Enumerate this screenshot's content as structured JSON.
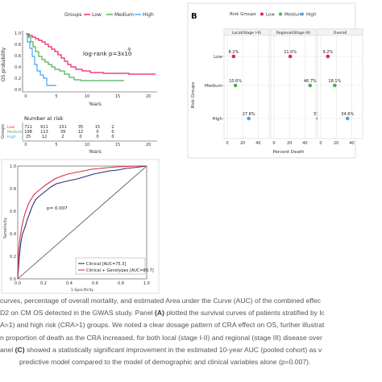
{
  "colors": {
    "low": "#e91e63",
    "medium": "#4caf50",
    "high": "#42a5f5",
    "ink": "#333333",
    "grid": "#d8d8d8",
    "clinical": "#2e2e7a",
    "genotypes": "#d83040"
  },
  "panelA": {
    "legend_title": "Groups",
    "legend": [
      "Low",
      "Medium",
      "High"
    ],
    "ylabel": "OS probability",
    "xlabel": "Years",
    "pvalue": "log-rank p=3x10",
    "pvalue_exp": "-9",
    "y_ticks": [
      "1.0",
      "0.8",
      "0.6",
      "0.4",
      "0.2",
      "0.0"
    ],
    "x_ticks": [
      "0",
      "5",
      "10",
      "15",
      "20"
    ],
    "risk_title": "Number at risk",
    "risk_ylabel": "Groups",
    "risk_xlabel": "Years",
    "risk_groups": [
      "Low",
      "Medium",
      "High"
    ],
    "risk_table": [
      [
        "711",
        "611",
        "151",
        "35",
        "15",
        "2"
      ],
      [
        "198",
        "113",
        "39",
        "12",
        "0",
        "0"
      ],
      [
        "25",
        "12",
        "2",
        "0",
        "0",
        "0"
      ]
    ],
    "risk_x_ticks": [
      "0",
      "5",
      "10",
      "15",
      "20"
    ]
  },
  "panelB": {
    "label": "B",
    "legend_title": "Risk Groups",
    "legend": [
      "Low",
      "Medium",
      "High"
    ],
    "facets": [
      "Local(Stage I-II)",
      "Regional(Stage III)",
      "Overall"
    ],
    "ylabel": "Risk Groups",
    "row_labels": [
      "Low",
      "Medium",
      "High"
    ],
    "xlabel": "Percent Death",
    "x_ticks": [
      "0",
      "20",
      "40"
    ],
    "chart_data": {
      "type": "scatter",
      "x_unit": "Percent Death",
      "categories": [
        "Low",
        "Medium",
        "High"
      ],
      "series": [
        {
          "name": "Local(Stage I-II)",
          "values": [
            8.2,
            10.6,
            27.8
          ],
          "labels": [
            "8.2%",
            "10.6%",
            "27.8%"
          ]
        },
        {
          "name": "Regional(Stage III)",
          "values": [
            21.0,
            46.7,
            57.1
          ],
          "labels": [
            "21.0%",
            "46.7%",
            "57.1"
          ]
        },
        {
          "name": "Overall",
          "values": [
            9.2,
            18.1,
            34.6
          ],
          "labels": [
            "9.2%",
            "18.1%",
            "34.6%"
          ]
        }
      ],
      "xlim": [
        0,
        50
      ]
    }
  },
  "panelC": {
    "annotation": "p= 0.007",
    "ylabel": "Sensitivity",
    "xlabel": "1-Specificity",
    "y_ticks": [
      "1.0",
      "0.8",
      "0.6",
      "0.4",
      "0.2",
      "0.0"
    ],
    "x_ticks": [
      "0.0",
      "0.2",
      "0.4",
      "0.6",
      "0.8",
      "1.0"
    ],
    "legend": [
      "Clinical [AUC=75.3]",
      "Clinical + Genotypes [AUC=80.7]"
    ]
  },
  "caption": {
    "line1": "curves, percentage of overall mortality, and estimated Area under the Curve (AUC) of the combined effec",
    "line2a": "D2 on CM OS detected in the GWAS study. Panel ",
    "line2b": "(A)",
    "line2c": " plotted the survival curves of patients stratified by lc",
    "line3": "A=1) and high risk (CRA>1) groups. We noted a clear dosage pattern of CRA effect on OS, further illustrat",
    "line4": "n proportion of death as the CRA increased, for both local (stage I-II) and regional (stage III) disease over",
    "line5a": "anel ",
    "line5b": "(C)",
    "line5c": " showed a statistically significant improvement in the estimated 10-year AUC (pooled cohort) as v",
    "line6": "predictive model compared to the model of demographic and clinical variables alone (p=0.007)."
  }
}
